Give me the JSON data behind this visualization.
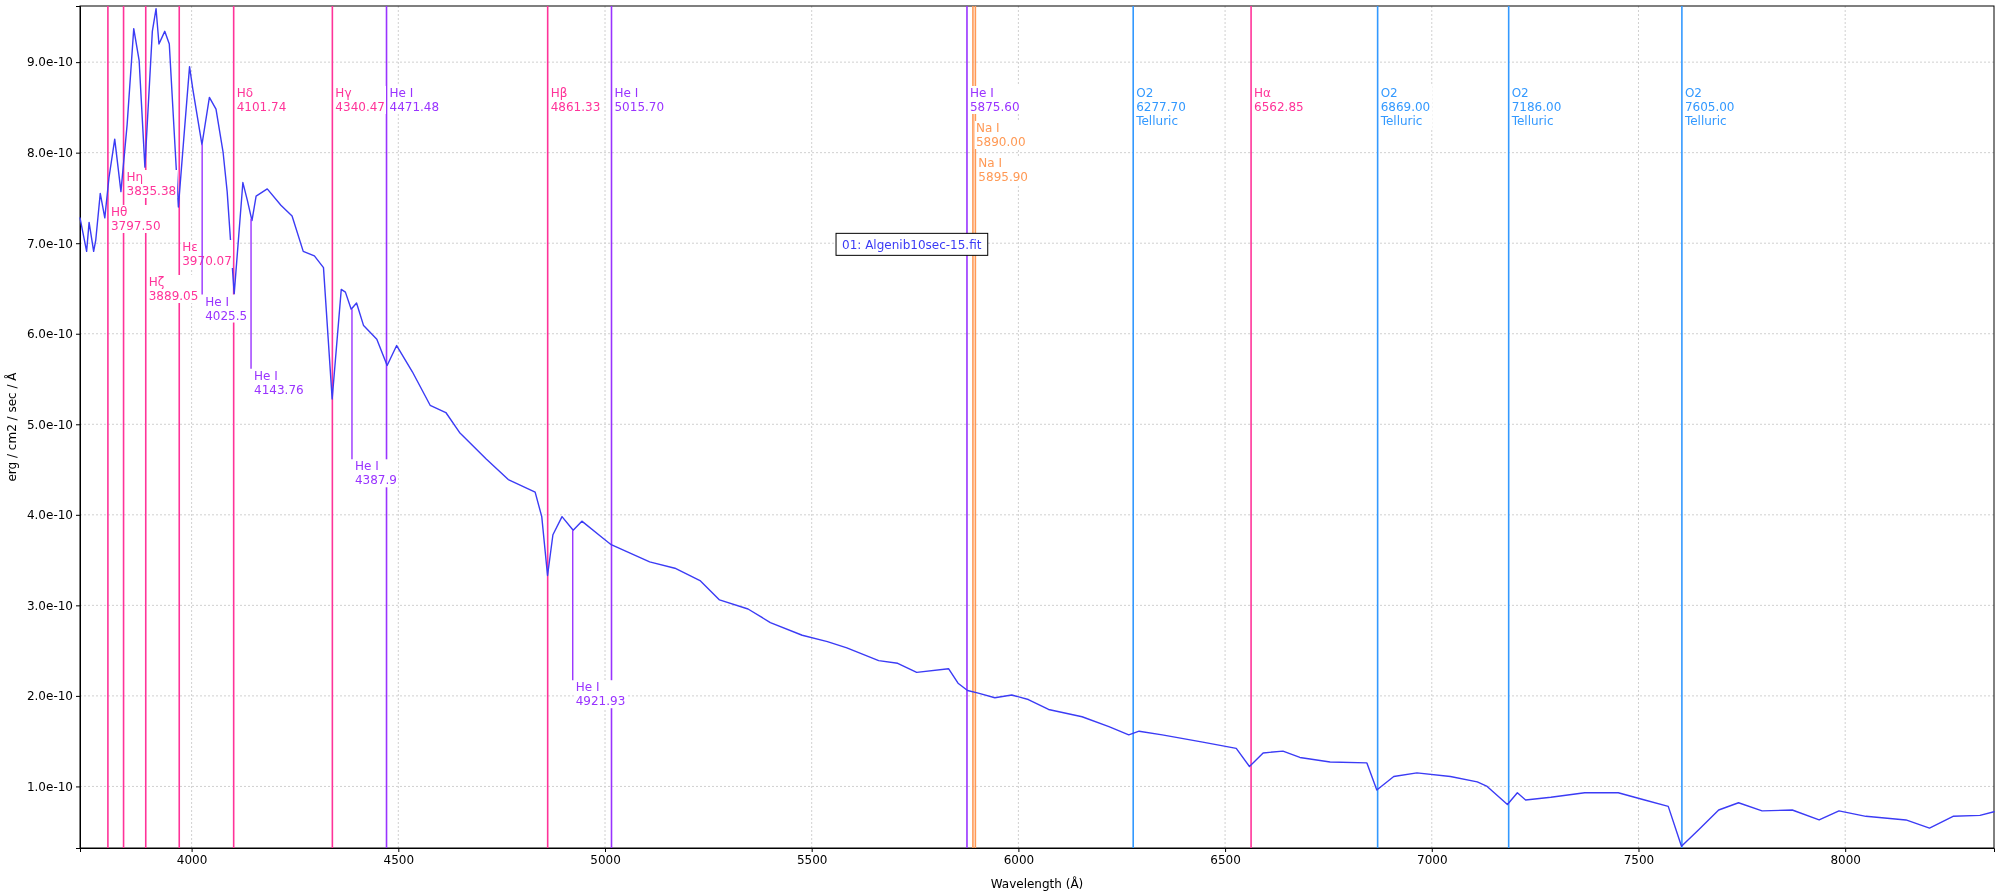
{
  "chart_data": {
    "type": "line",
    "xlabel": "Wavelength (Å)",
    "ylabel": "erg / cm2 / sec / Å",
    "xlim": [
      3730,
      8360
    ],
    "ylim": [
      3.2e-11,
      9.62e-10
    ],
    "xticks": [
      4000,
      4500,
      5000,
      5500,
      6000,
      6500,
      7000,
      7500,
      8000
    ],
    "yticks": [
      {
        "value": 1e-10,
        "label": "1.0e-10"
      },
      {
        "value": 2e-10,
        "label": "2.0e-10"
      },
      {
        "value": 3e-10,
        "label": "3.0e-10"
      },
      {
        "value": 4e-10,
        "label": "4.0e-10"
      },
      {
        "value": 5e-10,
        "label": "5.0e-10"
      },
      {
        "value": 6e-10,
        "label": "6.0e-10"
      },
      {
        "value": 7e-10,
        "label": "7.0e-10"
      },
      {
        "value": 8e-10,
        "label": "8.0e-10"
      },
      {
        "value": 9e-10,
        "label": "9.0e-10"
      }
    ],
    "grid": true,
    "legend": "top",
    "series": [
      {
        "name": "01: Algenib10sec-15.fit",
        "color": "#3b3bf5",
        "x": [
          3730,
          3746,
          3752,
          3763,
          3768,
          3779,
          3790,
          3800,
          3814,
          3829,
          3844,
          3860,
          3873,
          3887,
          3905,
          3914,
          3921,
          3935,
          3946,
          3968,
          3982,
          3995,
          4003,
          4025,
          4043,
          4059,
          4076,
          4086,
          4103,
          4124,
          4135,
          4146,
          4156,
          4183,
          4216,
          4243,
          4270,
          4297,
          4319,
          4340,
          4362,
          4372,
          4386,
          4399,
          4416,
          4448,
          4473,
          4496,
          4534,
          4577,
          4615,
          4648,
          4712,
          4766,
          4831,
          4847,
          4861,
          4874,
          4896,
          4923,
          4944,
          4993,
          5015,
          5054,
          5108,
          5169,
          5231,
          5277,
          5346,
          5400,
          5477,
          5538,
          5585,
          5662,
          5708,
          5754,
          5831,
          5854,
          5877,
          5903,
          5943,
          5984,
          6024,
          6073,
          6154,
          6219,
          6267,
          6292,
          6348,
          6446,
          6527,
          6559,
          6592,
          6640,
          6681,
          6754,
          6843,
          6867,
          6908,
          6964,
          7045,
          7110,
          7134,
          7183,
          7207,
          7227,
          7288,
          7370,
          7451,
          7515,
          7572,
          7604,
          7645,
          7694,
          7742,
          7799,
          7872,
          7937,
          7985,
          8050,
          8147,
          8204,
          8261,
          8326,
          8360
        ],
        "values": [
          7.28e-10,
          6.91e-10,
          7.23e-10,
          6.91e-10,
          7.03e-10,
          7.55e-10,
          7.28e-10,
          7.72e-10,
          8.15e-10,
          7.57e-10,
          8.31e-10,
          9.37e-10,
          9.02e-10,
          7.84e-10,
          9.34e-10,
          9.59e-10,
          9.2e-10,
          9.34e-10,
          9.2e-10,
          7.4e-10,
          8.21e-10,
          8.95e-10,
          8.7e-10,
          8.09e-10,
          8.61e-10,
          8.48e-10,
          8.01e-10,
          7.57e-10,
          6.44e-10,
          7.67e-10,
          7.47e-10,
          7.25e-10,
          7.52e-10,
          7.6e-10,
          7.42e-10,
          7.3e-10,
          6.91e-10,
          6.86e-10,
          6.73e-10,
          5.28e-10,
          6.49e-10,
          6.46e-10,
          6.27e-10,
          6.34e-10,
          6.09e-10,
          5.94e-10,
          5.65e-10,
          5.87e-10,
          5.58e-10,
          5.21e-10,
          5.13e-10,
          4.91e-10,
          4.62e-10,
          4.39e-10,
          4.25e-10,
          3.98e-10,
          3.33e-10,
          3.78e-10,
          3.98e-10,
          3.83e-10,
          3.93e-10,
          3.75e-10,
          3.67e-10,
          3.59e-10,
          3.48e-10,
          3.41e-10,
          3.27e-10,
          3.06e-10,
          2.96e-10,
          2.81e-10,
          2.67e-10,
          2.6e-10,
          2.53e-10,
          2.39e-10,
          2.36e-10,
          2.26e-10,
          2.3e-10,
          2.14e-10,
          2.06e-10,
          2.03e-10,
          1.98e-10,
          2.01e-10,
          1.96e-10,
          1.85e-10,
          1.77e-10,
          1.66e-10,
          1.57e-10,
          1.61e-10,
          1.57e-10,
          1.49e-10,
          1.42e-10,
          1.22e-10,
          1.37e-10,
          1.39e-10,
          1.32e-10,
          1.27e-10,
          1.26e-10,
          9.6e-11,
          1.11e-10,
          1.15e-10,
          1.11e-10,
          1.05e-10,
          1e-10,
          8e-11,
          9.3e-11,
          8.5e-11,
          8.8e-11,
          9.3e-11,
          9.3e-11,
          8.5e-11,
          7.8e-11,
          3.4e-11,
          5.2e-11,
          7.4e-11,
          8.2e-11,
          7.3e-11,
          7.4e-11,
          6.3e-11,
          7.3e-11,
          6.7e-11,
          6.3e-11,
          5.4e-11,
          6.7e-11,
          6.8e-11,
          7.2e-11
        ]
      }
    ],
    "ref_lines": [
      {
        "axis": "x",
        "value": 7605.0,
        "label": "O2\n7605.00\nTelluric",
        "color": "#3399ff"
      },
      {
        "axis": "x",
        "value": 7186.0,
        "label": "O2\n7186.00\nTelluric",
        "color": "#3399ff"
      },
      {
        "axis": "x",
        "value": 6869.0,
        "label": "O2\n6869.00\nTelluric",
        "color": "#3399ff"
      },
      {
        "axis": "x",
        "value": 6277.7,
        "label": "O2\n6277.70\nTelluric",
        "color": "#3399ff"
      },
      {
        "axis": "x",
        "value": 6562.85,
        "label": "Hα\n6562.85",
        "color": "#ff3399"
      },
      {
        "axis": "x",
        "value": 5875.6,
        "label": "He I\n5875.60",
        "color": "#9933ff"
      },
      {
        "axis": "x",
        "value": 5890.0,
        "label": "Na I\n5890.00",
        "color": "#ff9955"
      },
      {
        "axis": "x",
        "value": 5895.9,
        "label": "Na I\n5895.90",
        "color": "#ff9955"
      },
      {
        "axis": "x",
        "value": 5015.7,
        "label": "He I\n5015.70",
        "color": "#9933ff"
      },
      {
        "axis": "x",
        "value": 4861.33,
        "label": "Hβ\n4861.33",
        "color": "#ff3399"
      },
      {
        "axis": "x",
        "value": 4471.48,
        "label": "He I\n4471.48",
        "color": "#9933ff"
      },
      {
        "axis": "x",
        "value": 4340.47,
        "label": "Hγ\n4340.47",
        "color": "#ff3399"
      },
      {
        "axis": "x",
        "value": 4101.74,
        "label": "Hδ\n4101.74",
        "color": "#ff3399"
      },
      {
        "axis": "x",
        "value": 3970.07,
        "label": "Hε\n3970.07",
        "color": "#ff3399"
      },
      {
        "axis": "x",
        "value": 3889.05,
        "label": "Hζ\n3889.05",
        "color": "#ff3399"
      },
      {
        "axis": "x",
        "value": 3835.38,
        "label": "Hη\n3835.38",
        "color": "#ff3399"
      },
      {
        "axis": "x",
        "value": 3797.5,
        "label": "Hθ\n3797.50",
        "color": "#ff3399"
      }
    ],
    "annotations": [
      {
        "text": "He I\n4025.5",
        "x": 4025.5,
        "y": 8.09e-10
      },
      {
        "text": "He I\n4143.76",
        "x": 4143.76,
        "y": 7.27e-10
      },
      {
        "text": "He I\n4387.9",
        "x": 4387.9,
        "y": 6.27e-10
      },
      {
        "text": "He I\n4921.93",
        "x": 4921.93,
        "y": 3.83e-10
      }
    ]
  }
}
